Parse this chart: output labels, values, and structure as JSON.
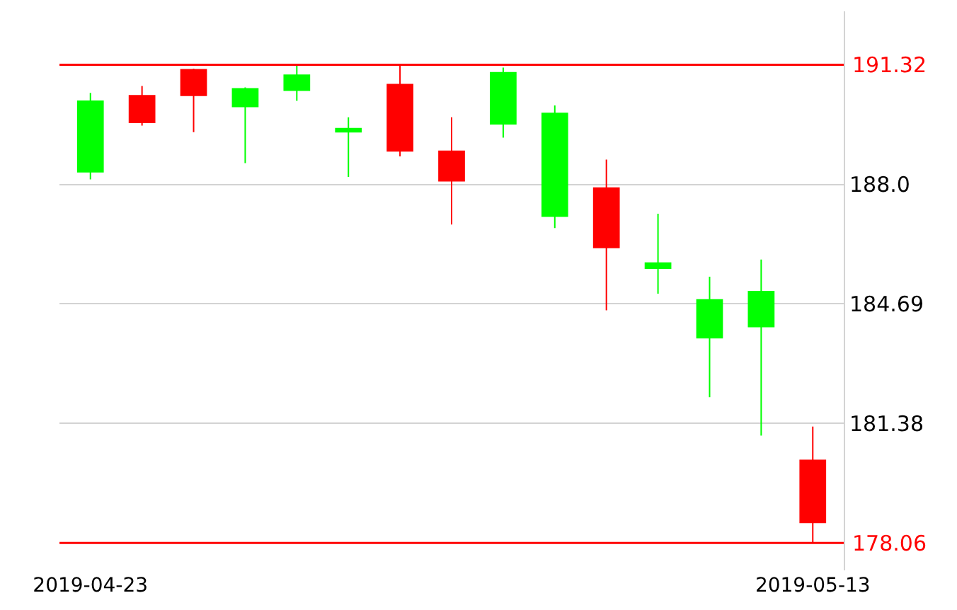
{
  "chart_data": {
    "type": "candlestick",
    "categories": [
      "2019-04-23",
      null,
      null,
      null,
      null,
      null,
      null,
      null,
      null,
      null,
      null,
      null,
      null,
      null,
      "2019-05-13"
    ],
    "ohlc": [
      [
        188.35,
        190.54,
        188.14,
        190.31
      ],
      [
        190.46,
        190.73,
        189.63,
        189.72
      ],
      [
        191.18,
        191.21,
        189.45,
        190.47
      ],
      [
        190.16,
        190.69,
        188.59,
        190.65
      ],
      [
        190.61,
        191.29,
        190.32,
        191.03
      ],
      [
        189.46,
        189.86,
        188.21,
        189.55
      ],
      [
        190.77,
        191.29,
        188.78,
        188.93
      ],
      [
        188.92,
        189.86,
        186.89,
        188.1
      ],
      [
        189.68,
        191.24,
        189.3,
        191.1
      ],
      [
        187.12,
        190.19,
        186.79,
        189.97
      ],
      [
        187.9,
        188.69,
        184.51,
        186.25
      ],
      [
        185.68,
        187.19,
        184.97,
        185.82
      ],
      [
        183.75,
        185.44,
        182.1,
        184.8
      ],
      [
        184.06,
        185.92,
        181.04,
        185.03
      ],
      [
        180.35,
        181.29,
        178.06,
        178.63
      ]
    ],
    "colors": [
      "#00ff00",
      "#ff0000",
      "#ff0000",
      "#00ff00",
      "#00ff00",
      "#00ff00",
      "#ff0000",
      "#ff0000",
      "#00ff00",
      "#00ff00",
      "#ff0000",
      "#00ff00",
      "#00ff00",
      "#00ff00",
      "#ff0000"
    ],
    "ylim": [
      177.3,
      192.8
    ],
    "yticks": [
      {
        "value": 188.0,
        "label": "188.0"
      },
      184.69,
      181.38
    ],
    "ref_lines": [
      {
        "axis": "y",
        "value": 191.32,
        "label": "191.32",
        "color": "#ff0000"
      },
      {
        "axis": "y",
        "value": 178.06,
        "label": "178.06",
        "color": "#ff0000"
      }
    ],
    "grid": "y"
  }
}
